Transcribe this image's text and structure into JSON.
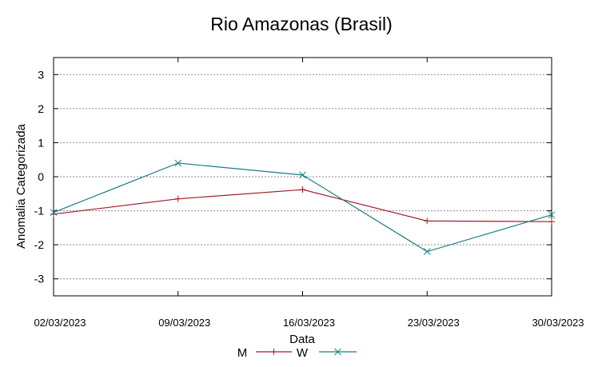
{
  "chart_data": {
    "type": "line",
    "title": "Rio Amazonas (Brasil)",
    "xlabel": "Data",
    "ylabel": "Anomalia Categorizada",
    "categories": [
      "02/03/2023",
      "09/03/2023",
      "16/03/2023",
      "23/03/2023",
      "30/03/2023"
    ],
    "yticks": [
      "3",
      "2",
      "1",
      "0",
      "-1",
      "-2",
      "-3"
    ],
    "ytick_values": [
      3,
      2,
      1,
      0,
      -1,
      -2,
      -3
    ],
    "ylim": [
      -3.5,
      3.5
    ],
    "grid": true,
    "legend_position": "bottom-center",
    "series": [
      {
        "name": "M",
        "values": [
          -1.1,
          -0.65,
          -0.38,
          -1.3,
          -1.32
        ],
        "color": "#a01c2a",
        "marker": "plus"
      },
      {
        "name": "W",
        "values": [
          -1.05,
          0.4,
          0.05,
          -2.2,
          -1.12
        ],
        "color": "#1a7f86",
        "marker": "x"
      }
    ]
  }
}
